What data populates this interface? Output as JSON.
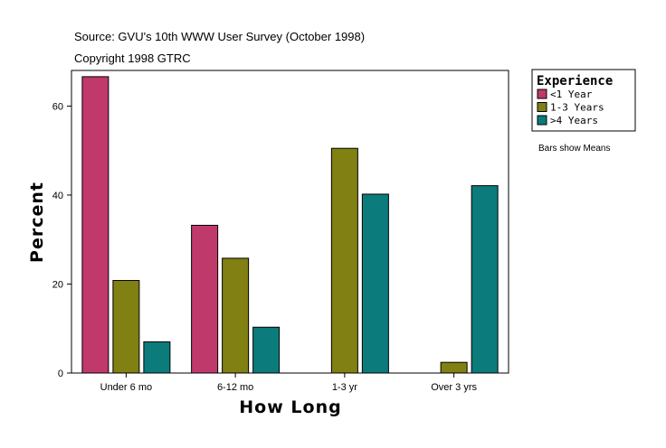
{
  "header": {
    "source": "Source: GVU's 10th WWW User Survey (October 1998)",
    "copyright": "Copyright 1998 GTRC"
  },
  "note": "Bars show Means",
  "legend": {
    "title": "Experience",
    "placement": "right"
  },
  "colors": {
    "lt1": "#C0396B",
    "y13": "#808013",
    "gt4": "#0C7B7B"
  },
  "chart_data": {
    "type": "bar",
    "xlabel": "How Long",
    "ylabel": "Percent",
    "ylim": [
      0,
      68
    ],
    "yticks": [
      0,
      20,
      40,
      60
    ],
    "grid": false,
    "categories": [
      "Under 6 mo",
      "6-12 mo",
      "1-3 yr",
      "Over 3 yrs"
    ],
    "series": [
      {
        "name": "<1 Year",
        "color": "#C0396B",
        "values": [
          66.6,
          33.2,
          null,
          null
        ]
      },
      {
        "name": "1-3 Years",
        "color": "#808013",
        "values": [
          20.8,
          25.8,
          50.5,
          2.4
        ]
      },
      {
        "name": ">4 Years",
        "color": "#0C7B7B",
        "values": [
          7.0,
          10.3,
          40.2,
          42.1
        ]
      }
    ]
  }
}
